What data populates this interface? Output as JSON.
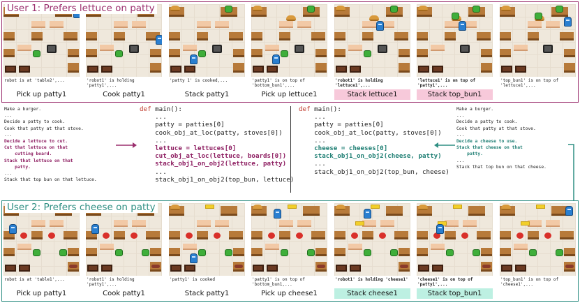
{
  "user1": {
    "title": "User 1: Prefers lettuce on patty",
    "accent": "#9b2f6e",
    "steps": [
      {
        "caption": "robot is at 'table2',...",
        "label": "Pick up patty1",
        "highlight": "none",
        "caption_bold": false
      },
      {
        "caption": "'robot1' is holding 'patty1',...",
        "label": "Cook patty1",
        "highlight": "none",
        "caption_bold": false
      },
      {
        "caption": "'patty 1' is cooked,...",
        "label": "Stack patty1",
        "highlight": "none",
        "caption_bold": false
      },
      {
        "caption": "'patty1' is on top of 'bottom_bun1',...",
        "label": "Pick up lettuce1",
        "highlight": "none",
        "caption_bold": false
      },
      {
        "caption": "'robot1' is holding 'lettuce1',...",
        "label": "Stack lettuce1",
        "highlight": "pink",
        "caption_bold": true
      },
      {
        "caption": "'lettuce1' is on top of 'patty1',...",
        "label": "Stack top_bun1",
        "highlight": "pink",
        "caption_bold": true
      },
      {
        "caption": "'top_bun1' is on top of 'lettuce1',...",
        "label": "",
        "highlight": "none",
        "caption_bold": false
      }
    ]
  },
  "user2": {
    "title": "User 2: Prefers cheese on patty",
    "accent": "#2f8f83",
    "steps": [
      {
        "caption": "robot is at 'table1',...",
        "label": "Pick up patty1",
        "highlight": "none",
        "caption_bold": false
      },
      {
        "caption": "'robot1' is holding 'patty1',...",
        "label": "Cook patty1",
        "highlight": "none",
        "caption_bold": false
      },
      {
        "caption": "'patty1' is cooked",
        "label": "Stack patty1",
        "highlight": "none",
        "caption_bold": false
      },
      {
        "caption": "'patty1' is on top of 'bottom_bun1,...",
        "label": "Pick up cheese1",
        "highlight": "none",
        "caption_bold": false
      },
      {
        "caption": "'robot1' is holding 'cheese1'",
        "label": "Stack cheese1",
        "highlight": "teal",
        "caption_bold": true
      },
      {
        "caption": "'cheese1' is on top of 'patty1',...",
        "label": "Stack top_bun1",
        "highlight": "teal",
        "caption_bold": true
      },
      {
        "caption": "'top_bun1' is on top of 'cheese1',...",
        "label": "",
        "highlight": "none",
        "caption_bold": false
      }
    ]
  },
  "nl_left": {
    "lines": [
      "Make a burger.",
      "...",
      "Decide a patty to cook.",
      "Cook that patty at that stove.",
      "..."
    ],
    "hl_lines": [
      "Decide a lettuce to cut.",
      "Cut that lettuce on that",
      "    cutting board.",
      "Stack that lettuce on that",
      "    patty."
    ],
    "tail_lines": [
      "...",
      "Stack that top bun on that lettuce."
    ]
  },
  "py_left": {
    "def_kw": "def",
    "def_rest": " main():",
    "lines": [
      "    ...",
      "    patty = patties[0]",
      "    cook_obj_at_loc(patty, stoves[0])",
      "    ..."
    ],
    "hl_lines": [
      "    lettuce = lettuces[0]",
      "    cut_obj_at_loc(lettuce, boards[0])",
      "    stack_obj1_on_obj2(lettuce, patty)"
    ],
    "tail_lines": [
      "    ...",
      "    stack_obj1_on_obj2(top_bun, lettuce)"
    ]
  },
  "py_right": {
    "def_kw": "def",
    "def_rest": " main():",
    "lines": [
      "    ...",
      "    patty = patties[0]",
      "    cook_obj_at_loc(patty, stoves[0])",
      "    ..."
    ],
    "hl_lines": [
      "    cheese = cheeses[0]",
      "    stack_obj1_on_obj2(cheese, patty)"
    ],
    "tail_lines": [
      "    ...",
      "    stack_obj1_on_obj2(top_bun, cheese)"
    ]
  },
  "nl_right": {
    "lines": [
      "Make a burger.",
      "...",
      "Decide a patty to cook.",
      "Cook that patty at that stove.",
      "..."
    ],
    "hl_lines": [
      "Decide a cheese to use.",
      "Stack that cheese on that",
      "    patty."
    ],
    "tail_lines": [
      "...",
      "Stack that top bun on that cheese."
    ]
  }
}
